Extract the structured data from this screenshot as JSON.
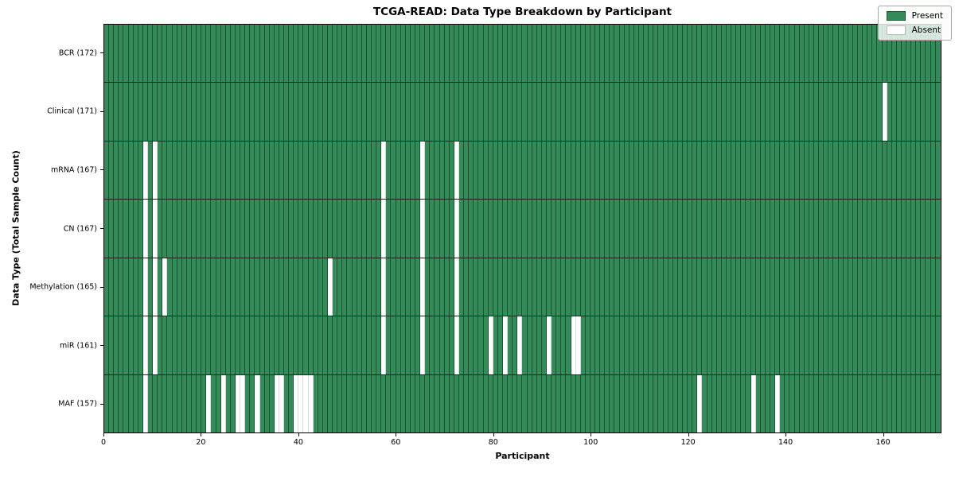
{
  "title": "TCGA-READ: Data Type Breakdown by Participant",
  "x_axis_label": "Participant",
  "y_axis_label": "Data Type (Total Sample Count)",
  "legend": {
    "present_label": "Present",
    "absent_label": "Absent"
  },
  "chart_data": {
    "type": "heatmap",
    "title": "TCGA-READ: Data Type Breakdown by Participant",
    "xlabel": "Participant",
    "ylabel": "Data Type (Total Sample Count)",
    "xlim": [
      0,
      172
    ],
    "n_participants": 172,
    "x_ticks": [
      0,
      20,
      40,
      60,
      80,
      100,
      120,
      140,
      160
    ],
    "grid": "row dividers and per-column cell edges",
    "legend_position": "upper right",
    "legend_entries": [
      {
        "label": "Present",
        "color": "#348a58"
      },
      {
        "label": "Absent",
        "color": "#ffffff"
      }
    ],
    "rows": [
      {
        "label": "BCR (172)",
        "data_type": "BCR",
        "total_sample_count": 172,
        "absent_participants": []
      },
      {
        "label": "Clinical (171)",
        "data_type": "Clinical",
        "total_sample_count": 171,
        "absent_participants": [
          160
        ]
      },
      {
        "label": "mRNA (167)",
        "data_type": "mRNA",
        "total_sample_count": 167,
        "absent_participants": [
          8,
          10,
          57,
          65,
          72
        ]
      },
      {
        "label": "CN (167)",
        "data_type": "CN",
        "total_sample_count": 167,
        "absent_participants": [
          8,
          10,
          57,
          65,
          72
        ]
      },
      {
        "label": "Methylation (165)",
        "data_type": "Methylation",
        "total_sample_count": 165,
        "absent_participants": [
          8,
          10,
          12,
          46,
          57,
          65,
          72
        ]
      },
      {
        "label": "miR (161)",
        "data_type": "miR",
        "total_sample_count": 161,
        "absent_participants": [
          8,
          10,
          57,
          65,
          72,
          79,
          82,
          85,
          91,
          96,
          97
        ]
      },
      {
        "label": "MAF (157)",
        "data_type": "MAF",
        "total_sample_count": 157,
        "absent_participants": [
          8,
          21,
          24,
          27,
          28,
          31,
          35,
          36,
          39,
          40,
          41,
          42,
          122,
          133,
          138
        ]
      }
    ],
    "colors": {
      "present": "#348a58",
      "absent": "#ffffff",
      "cell_edge_on_green": "rgba(0,25,12,0.5)",
      "cell_edge_on_white": "rgba(0,0,0,0.15)",
      "row_divider": "#0f0f0f",
      "plot_border": "#000000",
      "background": "#ffffff"
    }
  }
}
